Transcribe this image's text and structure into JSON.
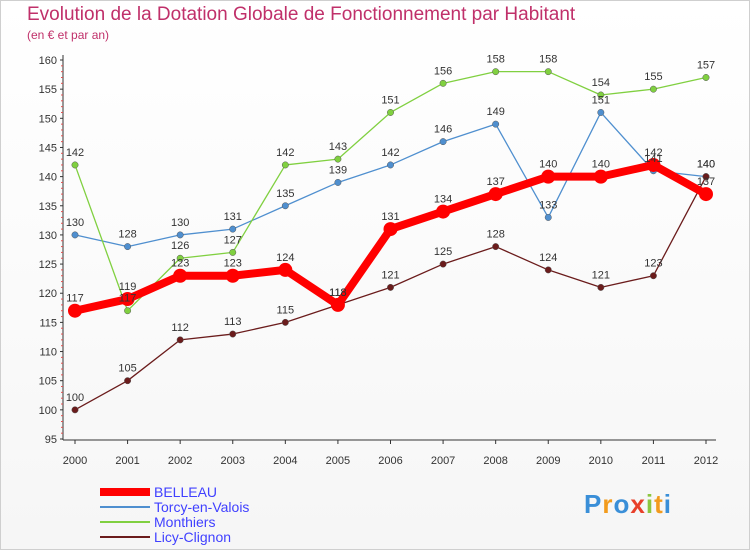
{
  "chart_data": {
    "type": "line",
    "title": "Evolution de la Dotation Globale de Fonctionnement par Habitant",
    "subtitle": "(en € et par an)",
    "x": [
      "2000",
      "2001",
      "2002",
      "2003",
      "2004",
      "2005",
      "2006",
      "2007",
      "2008",
      "2009",
      "2010",
      "2011",
      "2012"
    ],
    "ylim": [
      95,
      160
    ],
    "yticks": [
      95,
      100,
      105,
      110,
      115,
      120,
      125,
      130,
      135,
      140,
      145,
      150,
      155,
      160
    ],
    "series": [
      {
        "name": "BELLEAU",
        "color": "#ff0000",
        "values": [
          117,
          119,
          123,
          123,
          124,
          118,
          131,
          134,
          137,
          140,
          140,
          142,
          137
        ]
      },
      {
        "name": "Torcy-en-Valois",
        "color": "#4f8fcf",
        "values": [
          130,
          128,
          130,
          131,
          135,
          139,
          142,
          146,
          149,
          133,
          151,
          141,
          140
        ]
      },
      {
        "name": "Monthiers",
        "color": "#80d040",
        "values": [
          142,
          117,
          126,
          127,
          142,
          143,
          151,
          156,
          158,
          158,
          154,
          155,
          157
        ]
      },
      {
        "name": "Licy-Clignon",
        "color": "#6b1c1c",
        "values": [
          100,
          105,
          112,
          113,
          115,
          118,
          121,
          125,
          128,
          124,
          121,
          123,
          140
        ]
      }
    ]
  },
  "logo": {
    "text": "Proxiti",
    "letters": [
      "P",
      "r",
      "o",
      "x",
      "i",
      "t",
      "i"
    ]
  }
}
